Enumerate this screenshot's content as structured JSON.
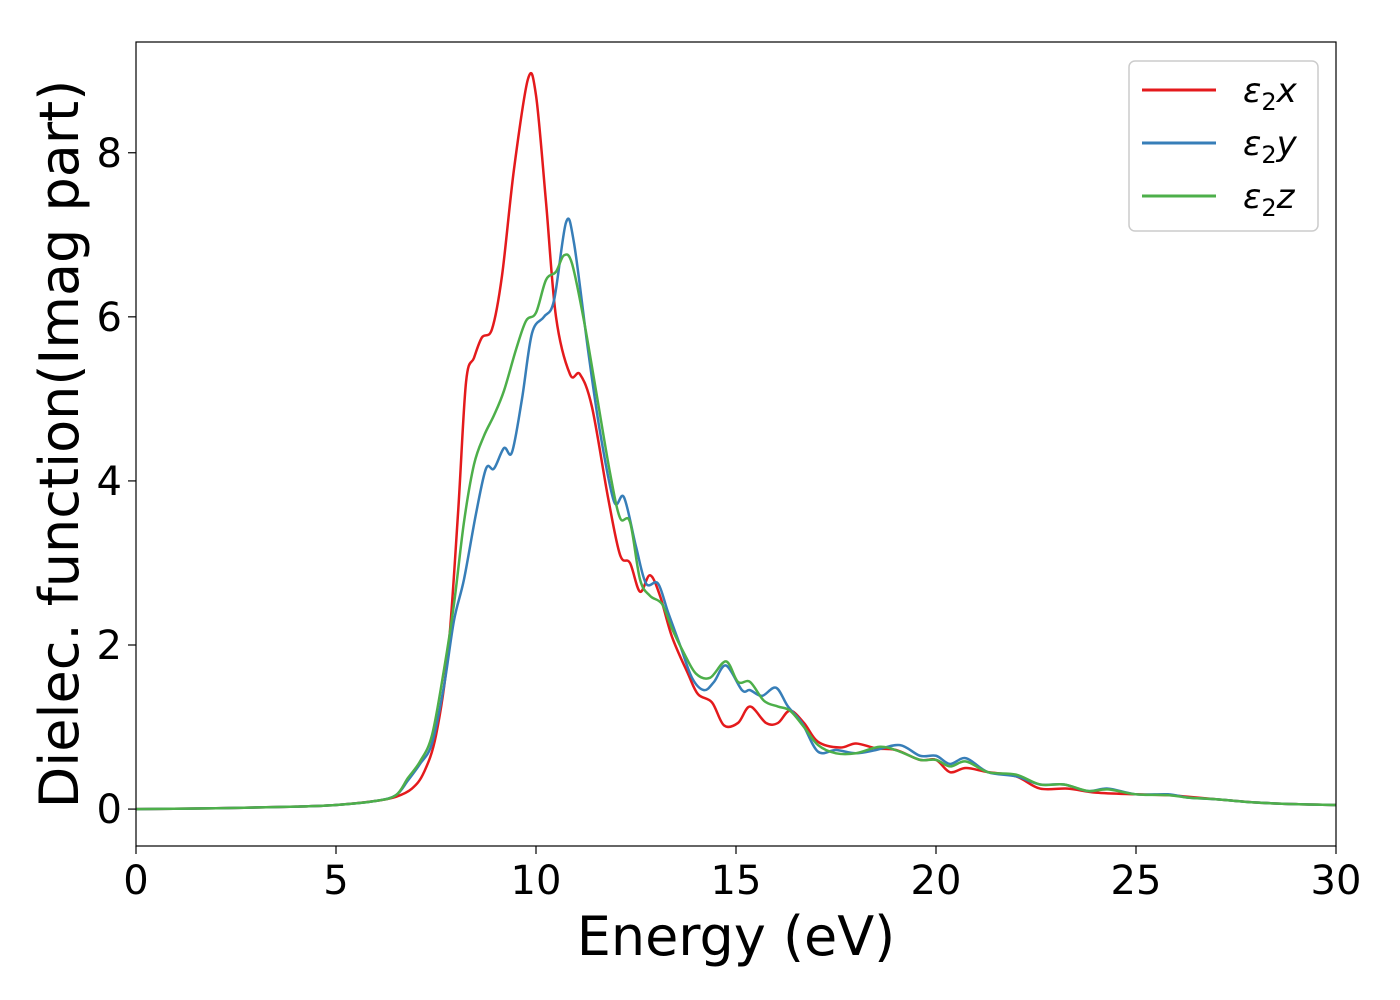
{
  "chart_data": {
    "type": "line",
    "title": "",
    "xlabel": "Energy (eV)",
    "ylabel": "Dielec. function(Imag part)",
    "xlim": [
      0,
      30
    ],
    "ylim": [
      -0.45,
      9.35
    ],
    "xticks": [
      "0",
      "5",
      "10",
      "15",
      "20",
      "25",
      "30"
    ],
    "yticks": [
      "0",
      "2",
      "4",
      "6",
      "8"
    ],
    "grid": false,
    "legend_position": "top-right",
    "legend": [
      {
        "symbol": "ε",
        "sub": "2",
        "axis": "x"
      },
      {
        "symbol": "ε",
        "sub": "2",
        "axis": "y"
      },
      {
        "symbol": "ε",
        "sub": "2",
        "axis": "z"
      }
    ],
    "series": [
      {
        "color": "#e41a1c",
        "points": [
          [
            0,
            0
          ],
          [
            2,
            0.01
          ],
          [
            4,
            0.03
          ],
          [
            5,
            0.05
          ],
          [
            6,
            0.1
          ],
          [
            6.5,
            0.15
          ],
          [
            6.9,
            0.25
          ],
          [
            7.2,
            0.45
          ],
          [
            7.5,
            0.9
          ],
          [
            7.8,
            1.9
          ],
          [
            8.05,
            3.6
          ],
          [
            8.25,
            5.2
          ],
          [
            8.45,
            5.5
          ],
          [
            8.65,
            5.75
          ],
          [
            8.9,
            5.85
          ],
          [
            9.15,
            6.5
          ],
          [
            9.45,
            7.8
          ],
          [
            9.8,
            8.9
          ],
          [
            10.0,
            8.7
          ],
          [
            10.25,
            7.4
          ],
          [
            10.5,
            6.0
          ],
          [
            10.85,
            5.3
          ],
          [
            11.1,
            5.3
          ],
          [
            11.4,
            4.9
          ],
          [
            11.8,
            3.8
          ],
          [
            12.1,
            3.1
          ],
          [
            12.35,
            3.0
          ],
          [
            12.6,
            2.65
          ],
          [
            12.85,
            2.85
          ],
          [
            13.1,
            2.6
          ],
          [
            13.4,
            2.1
          ],
          [
            13.8,
            1.65
          ],
          [
            14.05,
            1.4
          ],
          [
            14.4,
            1.3
          ],
          [
            14.7,
            1.02
          ],
          [
            15.05,
            1.05
          ],
          [
            15.35,
            1.25
          ],
          [
            15.75,
            1.05
          ],
          [
            16.05,
            1.05
          ],
          [
            16.35,
            1.2
          ],
          [
            16.7,
            1.05
          ],
          [
            17.05,
            0.82
          ],
          [
            17.6,
            0.75
          ],
          [
            18.0,
            0.8
          ],
          [
            18.5,
            0.74
          ],
          [
            19.0,
            0.72
          ],
          [
            19.6,
            0.6
          ],
          [
            20.0,
            0.6
          ],
          [
            20.35,
            0.45
          ],
          [
            20.75,
            0.5
          ],
          [
            21.3,
            0.45
          ],
          [
            22.0,
            0.4
          ],
          [
            22.6,
            0.25
          ],
          [
            23.3,
            0.25
          ],
          [
            24.0,
            0.2
          ],
          [
            25.0,
            0.18
          ],
          [
            25.8,
            0.17
          ],
          [
            26.3,
            0.15
          ],
          [
            27.0,
            0.12
          ],
          [
            28.0,
            0.08
          ],
          [
            29.0,
            0.06
          ],
          [
            30.0,
            0.05
          ]
        ]
      },
      {
        "color": "#377eb8",
        "points": [
          [
            0,
            0
          ],
          [
            2,
            0.01
          ],
          [
            4,
            0.03
          ],
          [
            5,
            0.05
          ],
          [
            6,
            0.1
          ],
          [
            6.5,
            0.17
          ],
          [
            6.8,
            0.35
          ],
          [
            7.1,
            0.55
          ],
          [
            7.4,
            0.8
          ],
          [
            7.7,
            1.5
          ],
          [
            7.95,
            2.3
          ],
          [
            8.2,
            2.8
          ],
          [
            8.5,
            3.6
          ],
          [
            8.75,
            4.15
          ],
          [
            8.95,
            4.15
          ],
          [
            9.2,
            4.4
          ],
          [
            9.4,
            4.35
          ],
          [
            9.65,
            5.0
          ],
          [
            9.9,
            5.8
          ],
          [
            10.2,
            6.0
          ],
          [
            10.45,
            6.2
          ],
          [
            10.75,
            7.15
          ],
          [
            10.95,
            6.9
          ],
          [
            11.3,
            5.6
          ],
          [
            11.6,
            4.6
          ],
          [
            11.95,
            3.75
          ],
          [
            12.2,
            3.8
          ],
          [
            12.5,
            3.2
          ],
          [
            12.75,
            2.75
          ],
          [
            13.05,
            2.75
          ],
          [
            13.3,
            2.4
          ],
          [
            13.6,
            2.0
          ],
          [
            13.9,
            1.6
          ],
          [
            14.2,
            1.45
          ],
          [
            14.45,
            1.55
          ],
          [
            14.75,
            1.75
          ],
          [
            15.15,
            1.45
          ],
          [
            15.35,
            1.45
          ],
          [
            15.65,
            1.38
          ],
          [
            16.0,
            1.48
          ],
          [
            16.3,
            1.25
          ],
          [
            16.65,
            1.05
          ],
          [
            17.05,
            0.7
          ],
          [
            17.5,
            0.72
          ],
          [
            18.0,
            0.68
          ],
          [
            18.5,
            0.72
          ],
          [
            19.1,
            0.78
          ],
          [
            19.6,
            0.65
          ],
          [
            20.0,
            0.65
          ],
          [
            20.35,
            0.55
          ],
          [
            20.75,
            0.62
          ],
          [
            21.3,
            0.45
          ],
          [
            22.0,
            0.4
          ],
          [
            22.6,
            0.3
          ],
          [
            23.2,
            0.3
          ],
          [
            23.8,
            0.22
          ],
          [
            24.3,
            0.25
          ],
          [
            25.0,
            0.18
          ],
          [
            25.8,
            0.18
          ],
          [
            26.3,
            0.14
          ],
          [
            27.0,
            0.12
          ],
          [
            28.0,
            0.08
          ],
          [
            29.0,
            0.06
          ],
          [
            30.0,
            0.05
          ]
        ]
      },
      {
        "color": "#4daf4a",
        "points": [
          [
            0,
            0
          ],
          [
            2,
            0.01
          ],
          [
            4,
            0.03
          ],
          [
            5,
            0.05
          ],
          [
            6,
            0.1
          ],
          [
            6.5,
            0.17
          ],
          [
            6.8,
            0.38
          ],
          [
            7.1,
            0.58
          ],
          [
            7.4,
            0.9
          ],
          [
            7.7,
            1.7
          ],
          [
            7.95,
            2.5
          ],
          [
            8.2,
            3.5
          ],
          [
            8.45,
            4.2
          ],
          [
            8.7,
            4.55
          ],
          [
            8.95,
            4.8
          ],
          [
            9.2,
            5.1
          ],
          [
            9.5,
            5.6
          ],
          [
            9.75,
            5.95
          ],
          [
            10.0,
            6.05
          ],
          [
            10.25,
            6.45
          ],
          [
            10.5,
            6.55
          ],
          [
            10.7,
            6.75
          ],
          [
            10.9,
            6.65
          ],
          [
            11.2,
            5.95
          ],
          [
            11.5,
            5.1
          ],
          [
            11.85,
            4.1
          ],
          [
            12.1,
            3.55
          ],
          [
            12.35,
            3.5
          ],
          [
            12.6,
            2.8
          ],
          [
            12.85,
            2.6
          ],
          [
            13.15,
            2.5
          ],
          [
            13.4,
            2.2
          ],
          [
            13.7,
            1.9
          ],
          [
            14.0,
            1.65
          ],
          [
            14.35,
            1.6
          ],
          [
            14.75,
            1.8
          ],
          [
            15.05,
            1.55
          ],
          [
            15.35,
            1.55
          ],
          [
            15.7,
            1.32
          ],
          [
            16.05,
            1.25
          ],
          [
            16.35,
            1.2
          ],
          [
            16.7,
            1.0
          ],
          [
            17.05,
            0.78
          ],
          [
            17.5,
            0.68
          ],
          [
            18.0,
            0.68
          ],
          [
            18.6,
            0.76
          ],
          [
            19.1,
            0.7
          ],
          [
            19.6,
            0.6
          ],
          [
            20.0,
            0.6
          ],
          [
            20.35,
            0.52
          ],
          [
            20.75,
            0.58
          ],
          [
            21.3,
            0.45
          ],
          [
            22.0,
            0.42
          ],
          [
            22.6,
            0.3
          ],
          [
            23.2,
            0.3
          ],
          [
            23.8,
            0.22
          ],
          [
            24.3,
            0.24
          ],
          [
            25.0,
            0.18
          ],
          [
            25.8,
            0.17
          ],
          [
            26.3,
            0.14
          ],
          [
            27.0,
            0.12
          ],
          [
            28.0,
            0.08
          ],
          [
            29.0,
            0.06
          ],
          [
            30.0,
            0.05
          ]
        ]
      }
    ]
  }
}
